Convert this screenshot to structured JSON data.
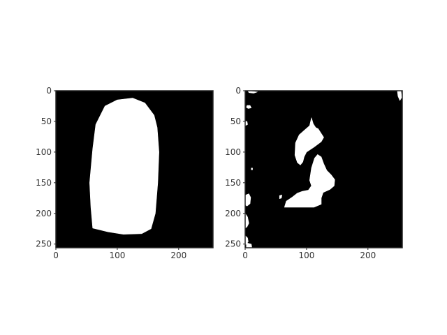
{
  "chart_data": [
    {
      "type": "heatmap",
      "title": "",
      "xlabel": "",
      "ylabel": "",
      "xlim": [
        0,
        256
      ],
      "ylim": [
        256,
        0
      ],
      "xticks": [
        0,
        100,
        200
      ],
      "yticks": [
        0,
        50,
        100,
        150,
        200,
        250
      ],
      "image_size": [
        256,
        256
      ],
      "values": [
        0,
        1
      ],
      "colors": {
        "0": "#000000",
        "1": "#ffffff"
      },
      "grid": false,
      "mask_regions": [
        [
          [
            55,
            150
          ],
          [
            60,
            95
          ],
          [
            65,
            55
          ],
          [
            80,
            25
          ],
          [
            100,
            15
          ],
          [
            125,
            12
          ],
          [
            145,
            20
          ],
          [
            160,
            40
          ],
          [
            165,
            60
          ],
          [
            168,
            100
          ],
          [
            166,
            150
          ],
          [
            162,
            200
          ],
          [
            155,
            225
          ],
          [
            140,
            233
          ],
          [
            110,
            234
          ],
          [
            85,
            230
          ],
          [
            60,
            224
          ],
          [
            57,
            190
          ]
        ]
      ]
    },
    {
      "type": "heatmap",
      "title": "",
      "xlabel": "",
      "ylabel": "",
      "xlim": [
        0,
        256
      ],
      "ylim": [
        256,
        0
      ],
      "xticks": [
        0,
        100,
        200
      ],
      "yticks": [
        0,
        50,
        100,
        150,
        200,
        250
      ],
      "image_size": [
        256,
        256
      ],
      "values": [
        0,
        1
      ],
      "colors": {
        "0": "#000000",
        "1": "#ffffff"
      },
      "grid": false,
      "mask_regions": [
        [
          [
            108,
            44
          ],
          [
            111,
            54
          ],
          [
            115,
            60
          ],
          [
            119,
            62
          ],
          [
            128,
            76
          ],
          [
            124,
            83
          ],
          [
            112,
            92
          ],
          [
            100,
            100
          ],
          [
            96,
            108
          ],
          [
            94,
            116
          ],
          [
            90,
            121
          ],
          [
            85,
            117
          ],
          [
            81,
            105
          ],
          [
            82,
            85
          ],
          [
            88,
            72
          ],
          [
            97,
            64
          ],
          [
            105,
            57
          ]
        ],
        [
          [
            113,
            110
          ],
          [
            118,
            104
          ],
          [
            124,
            108
          ],
          [
            128,
            119
          ],
          [
            133,
            130
          ],
          [
            140,
            137
          ],
          [
            146,
            145
          ],
          [
            145,
            155
          ],
          [
            138,
            161
          ],
          [
            127,
            166
          ],
          [
            124,
            175
          ],
          [
            124,
            185
          ],
          [
            112,
            190
          ],
          [
            64,
            190
          ],
          [
            67,
            180
          ],
          [
            76,
            174
          ],
          [
            85,
            167
          ],
          [
            93,
            164
          ],
          [
            103,
            162
          ],
          [
            108,
            155
          ],
          [
            105,
            146
          ],
          [
            108,
            126
          ]
        ],
        [
          [
            106,
            170
          ],
          [
            110,
            175
          ],
          [
            108,
            180
          ],
          [
            103,
            177
          ]
        ],
        [
          [
            5,
            1
          ],
          [
            10,
            1
          ],
          [
            20,
            2
          ],
          [
            14,
            4
          ],
          [
            6,
            3
          ]
        ],
        [
          [
            248,
            1
          ],
          [
            254,
            1
          ],
          [
            255,
            11
          ],
          [
            252,
            16
          ],
          [
            249,
            9
          ]
        ],
        [
          [
            3,
            24
          ],
          [
            8,
            24
          ],
          [
            10,
            28
          ],
          [
            5,
            29
          ],
          [
            2,
            27
          ]
        ],
        [
          [
            0,
            50
          ],
          [
            3,
            50
          ],
          [
            4,
            55
          ],
          [
            0,
            57
          ]
        ],
        [
          [
            10,
            126
          ],
          [
            12,
            126
          ],
          [
            12,
            129
          ],
          [
            10,
            129
          ]
        ],
        [
          [
            1,
            170
          ],
          [
            6,
            168
          ],
          [
            9,
            174
          ],
          [
            8,
            184
          ],
          [
            3,
            188
          ],
          [
            0,
            186
          ]
        ],
        [
          [
            0,
            200
          ],
          [
            4,
            206
          ],
          [
            6,
            216
          ],
          [
            3,
            222
          ],
          [
            0,
            224
          ]
        ],
        [
          [
            0,
            236
          ],
          [
            4,
            240
          ],
          [
            5,
            246
          ],
          [
            2,
            250
          ],
          [
            0,
            251
          ]
        ],
        [
          [
            2,
            248
          ],
          [
            10,
            250
          ],
          [
            11,
            256
          ],
          [
            2,
            256
          ]
        ],
        [
          [
            56,
            171
          ],
          [
            60,
            170
          ],
          [
            59,
            175
          ],
          [
            56,
            176
          ]
        ]
      ]
    }
  ]
}
